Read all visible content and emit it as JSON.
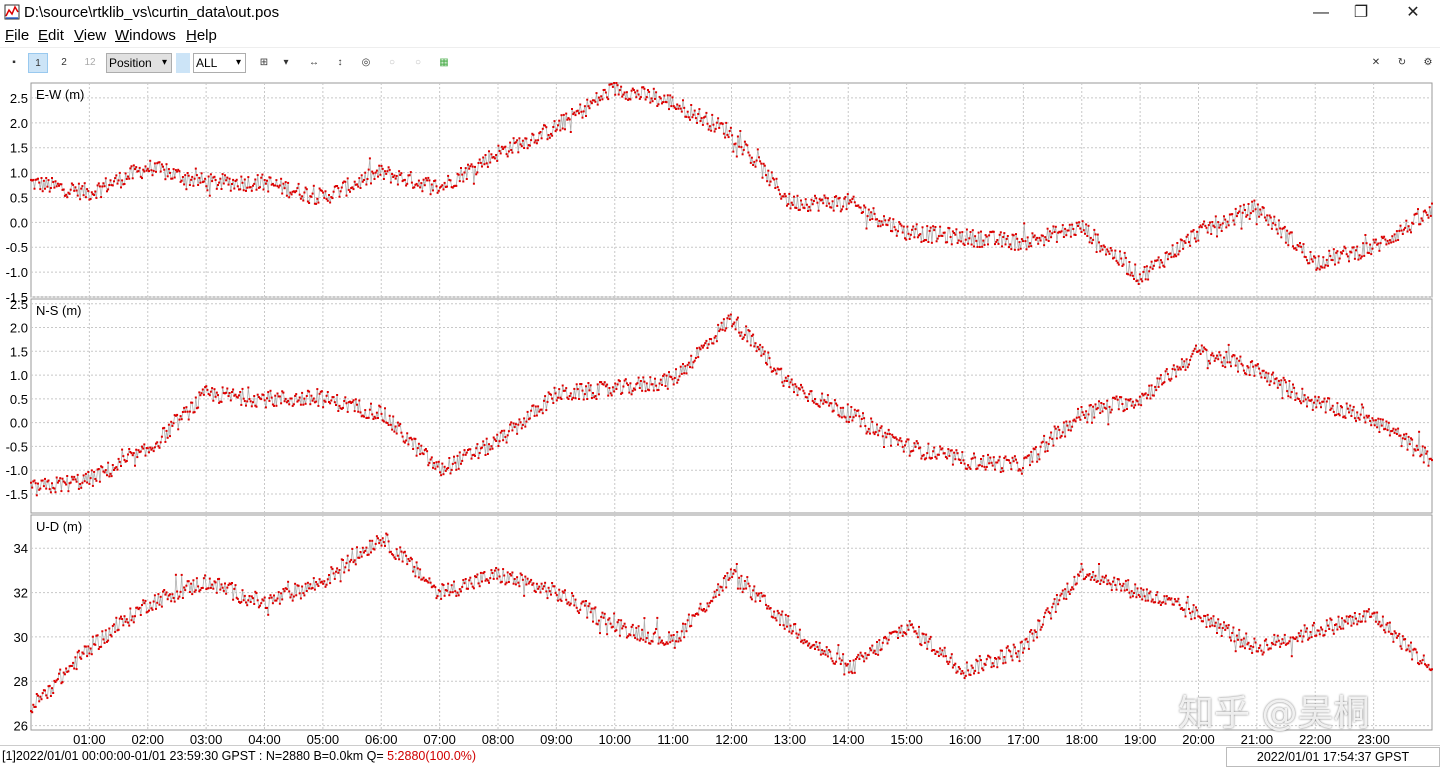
{
  "window": {
    "title": "D:\\source\\rtklib_vs\\curtin_data\\out.pos",
    "minimize": "—",
    "maximize": "❐",
    "close": "✕"
  },
  "menu": [
    {
      "label": "File",
      "u": "F",
      "rest": "ile"
    },
    {
      "label": "Edit",
      "u": "E",
      "rest": "dit"
    },
    {
      "label": "View",
      "u": "V",
      "rest": "iew"
    },
    {
      "label": "Windows",
      "u": "W",
      "rest": "indows"
    },
    {
      "label": "Help",
      "u": "H",
      "rest": "elp"
    }
  ],
  "toolbar": {
    "btn1": "1",
    "btn2": "2",
    "btn12": "12",
    "plot_type": "Position",
    "sat_select": "ALL"
  },
  "chart_data": [
    {
      "type": "line",
      "title": "E-W (m)",
      "ylim": [
        -1.5,
        2.8
      ],
      "yticks": [
        "2.5",
        "2.0",
        "1.5",
        "1.0",
        "0.5",
        "0.0",
        "-0.5",
        "-1.0",
        "-1.5"
      ],
      "x": [
        "00:00",
        "01:00",
        "02:00",
        "03:00",
        "04:00",
        "05:00",
        "06:00",
        "07:00",
        "08:00",
        "09:00",
        "10:00",
        "11:00",
        "12:00",
        "13:00",
        "14:00",
        "15:00",
        "16:00",
        "17:00",
        "18:00",
        "19:00",
        "20:00",
        "21:00",
        "22:00",
        "23:00",
        "23:59"
      ],
      "values": [
        0.8,
        0.6,
        1.1,
        0.8,
        0.8,
        0.5,
        1.0,
        0.7,
        1.4,
        1.9,
        2.7,
        2.4,
        1.8,
        0.4,
        0.4,
        -0.2,
        -0.3,
        -0.4,
        -0.1,
        -1.1,
        -0.2,
        0.3,
        -0.8,
        -0.5,
        0.2
      ]
    },
    {
      "type": "line",
      "title": "N-S (m)",
      "ylim": [
        -1.9,
        2.6
      ],
      "yticks": [
        "2.5",
        "2.0",
        "1.5",
        "1.0",
        "0.5",
        "0.0",
        "-0.5",
        "-1.0",
        "-1.5"
      ],
      "x": [
        "00:00",
        "01:00",
        "02:00",
        "03:00",
        "04:00",
        "05:00",
        "06:00",
        "07:00",
        "08:00",
        "09:00",
        "10:00",
        "11:00",
        "12:00",
        "13:00",
        "14:00",
        "15:00",
        "16:00",
        "17:00",
        "18:00",
        "19:00",
        "20:00",
        "21:00",
        "22:00",
        "23:00",
        "23:59"
      ],
      "values": [
        -1.4,
        -1.2,
        -0.6,
        0.6,
        0.5,
        0.5,
        0.2,
        -1.0,
        -0.4,
        0.6,
        0.7,
        0.9,
        2.2,
        0.8,
        0.2,
        -0.5,
        -0.8,
        -0.9,
        0.2,
        0.5,
        1.5,
        1.1,
        0.4,
        0.1,
        -0.8
      ]
    },
    {
      "type": "line",
      "title": "U-D (m)",
      "ylim": [
        25.8,
        35.5
      ],
      "yticks": [
        "34",
        "32",
        "30",
        "28",
        "26"
      ],
      "x": [
        "00:00",
        "01:00",
        "02:00",
        "03:00",
        "04:00",
        "05:00",
        "06:00",
        "07:00",
        "08:00",
        "09:00",
        "10:00",
        "11:00",
        "12:00",
        "13:00",
        "14:00",
        "15:00",
        "16:00",
        "17:00",
        "18:00",
        "19:00",
        "20:00",
        "21:00",
        "22:00",
        "23:00",
        "23:59"
      ],
      "values": [
        26.8,
        29.5,
        31.5,
        32.5,
        31.5,
        32.5,
        34.5,
        32.0,
        32.8,
        32.0,
        30.5,
        29.8,
        32.8,
        30.5,
        28.5,
        30.5,
        28.5,
        29.5,
        33.0,
        32.0,
        31.0,
        29.5,
        30.3,
        31.0,
        28.5
      ]
    }
  ],
  "x_tick_labels": [
    "01:00",
    "02:00",
    "03:00",
    "04:00",
    "05:00",
    "06:00",
    "07:00",
    "08:00",
    "09:00",
    "10:00",
    "11:00",
    "12:00",
    "13:00",
    "14:00",
    "15:00",
    "16:00",
    "17:00",
    "18:00",
    "19:00",
    "20:00",
    "21:00",
    "22:00",
    "23:00"
  ],
  "status": {
    "left_text": "[1]2022/01/01 00:00:00-01/01 23:59:30 GPST : N=2880 B=0.0km Q= ",
    "q_text": "5:2880(100.0%)",
    "right_text": "2022/01/01 17:54:37 GPST"
  },
  "watermark": "知乎 @吴桐",
  "colors": {
    "data": "#dd0000",
    "line": "#b0b0b0",
    "grid": "#c8c8c8"
  }
}
